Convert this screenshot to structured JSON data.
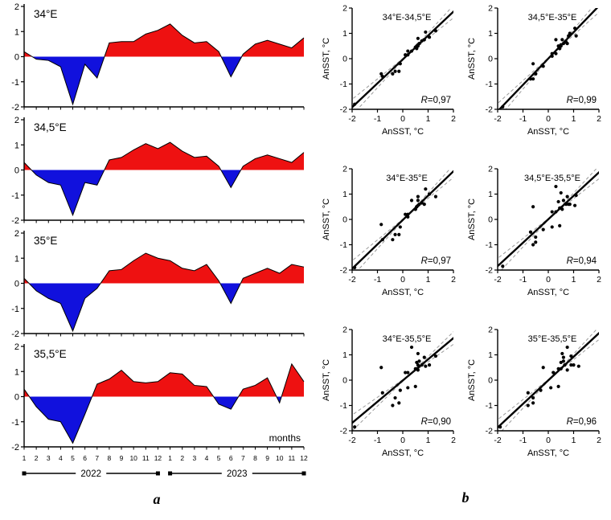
{
  "figure": {
    "panel_a_label": "a",
    "panel_b_label": "b",
    "months_label": "months",
    "colors": {
      "positive": "#ee1111",
      "negative": "#1111dd",
      "axis": "#000000",
      "fit_line": "#000000",
      "band_line": "#9a9a9a"
    }
  },
  "chart_data": {
    "timeseries": {
      "type": "area",
      "ylim": [
        -2,
        2
      ],
      "yticks": [
        -2,
        -1,
        0,
        1,
        2
      ],
      "month_ticks": [
        1,
        2,
        3,
        4,
        5,
        6,
        7,
        8,
        9,
        10,
        11,
        12
      ],
      "years": [
        "2022",
        "2023"
      ],
      "xlabel": "months",
      "series": [
        {
          "name": "34°E",
          "values": [
            0.2,
            -0.1,
            -0.15,
            -0.4,
            -1.9,
            -0.3,
            -0.85,
            0.55,
            0.6,
            0.6,
            0.9,
            1.05,
            1.3,
            0.85,
            0.55,
            0.6,
            0.2,
            -0.8,
            0.1,
            0.5,
            0.65,
            0.5,
            0.35,
            0.75
          ]
        },
        {
          "name": "34,5°E",
          "values": [
            0.3,
            -0.2,
            -0.5,
            -0.6,
            -1.8,
            -0.5,
            -0.6,
            0.4,
            0.5,
            0.8,
            1.05,
            0.85,
            1.1,
            0.75,
            0.5,
            0.55,
            0.15,
            -0.7,
            0.15,
            0.45,
            0.6,
            0.45,
            0.3,
            0.7
          ]
        },
        {
          "name": "35°E",
          "values": [
            0.2,
            -0.3,
            -0.6,
            -0.8,
            -1.9,
            -0.6,
            -0.2,
            0.5,
            0.55,
            0.9,
            1.2,
            1.0,
            0.9,
            0.6,
            0.5,
            0.75,
            0.1,
            -0.8,
            0.2,
            0.4,
            0.6,
            0.4,
            0.75,
            0.65
          ]
        },
        {
          "name": "35,5°E",
          "values": [
            0.3,
            -0.4,
            -0.9,
            -1.0,
            -1.85,
            -0.7,
            0.5,
            0.7,
            1.05,
            0.6,
            0.55,
            0.6,
            0.95,
            0.9,
            0.45,
            0.4,
            -0.3,
            -0.5,
            0.3,
            0.45,
            0.75,
            -0.25,
            1.3,
            0.6
          ]
        }
      ]
    },
    "scatter": {
      "type": "scatter",
      "xlabel": "AnSST, °C",
      "ylabel": "AnSST, °C",
      "xlim": [
        -2,
        2
      ],
      "ylim": [
        -2,
        2
      ],
      "ticks": [
        -2,
        -1,
        0,
        1,
        2
      ],
      "plots": [
        {
          "title": "34°E-34,5°E",
          "x_series": 0,
          "y_series": 1,
          "r_label": "R=0,97"
        },
        {
          "title": "34,5°E-35°E",
          "x_series": 1,
          "y_series": 2,
          "r_label": "R=0,99"
        },
        {
          "title": "34°E-35°E",
          "x_series": 0,
          "y_series": 2,
          "r_label": "R=0,97"
        },
        {
          "title": "34,5°E-35,5°E",
          "x_series": 1,
          "y_series": 3,
          "r_label": "R=0,94"
        },
        {
          "title": "34°E-35,5°E",
          "x_series": 0,
          "y_series": 3,
          "r_label": "R=0,90"
        },
        {
          "title": "35°E-35,5°E",
          "x_series": 2,
          "y_series": 3,
          "r_label": "R=0,96"
        }
      ]
    }
  }
}
